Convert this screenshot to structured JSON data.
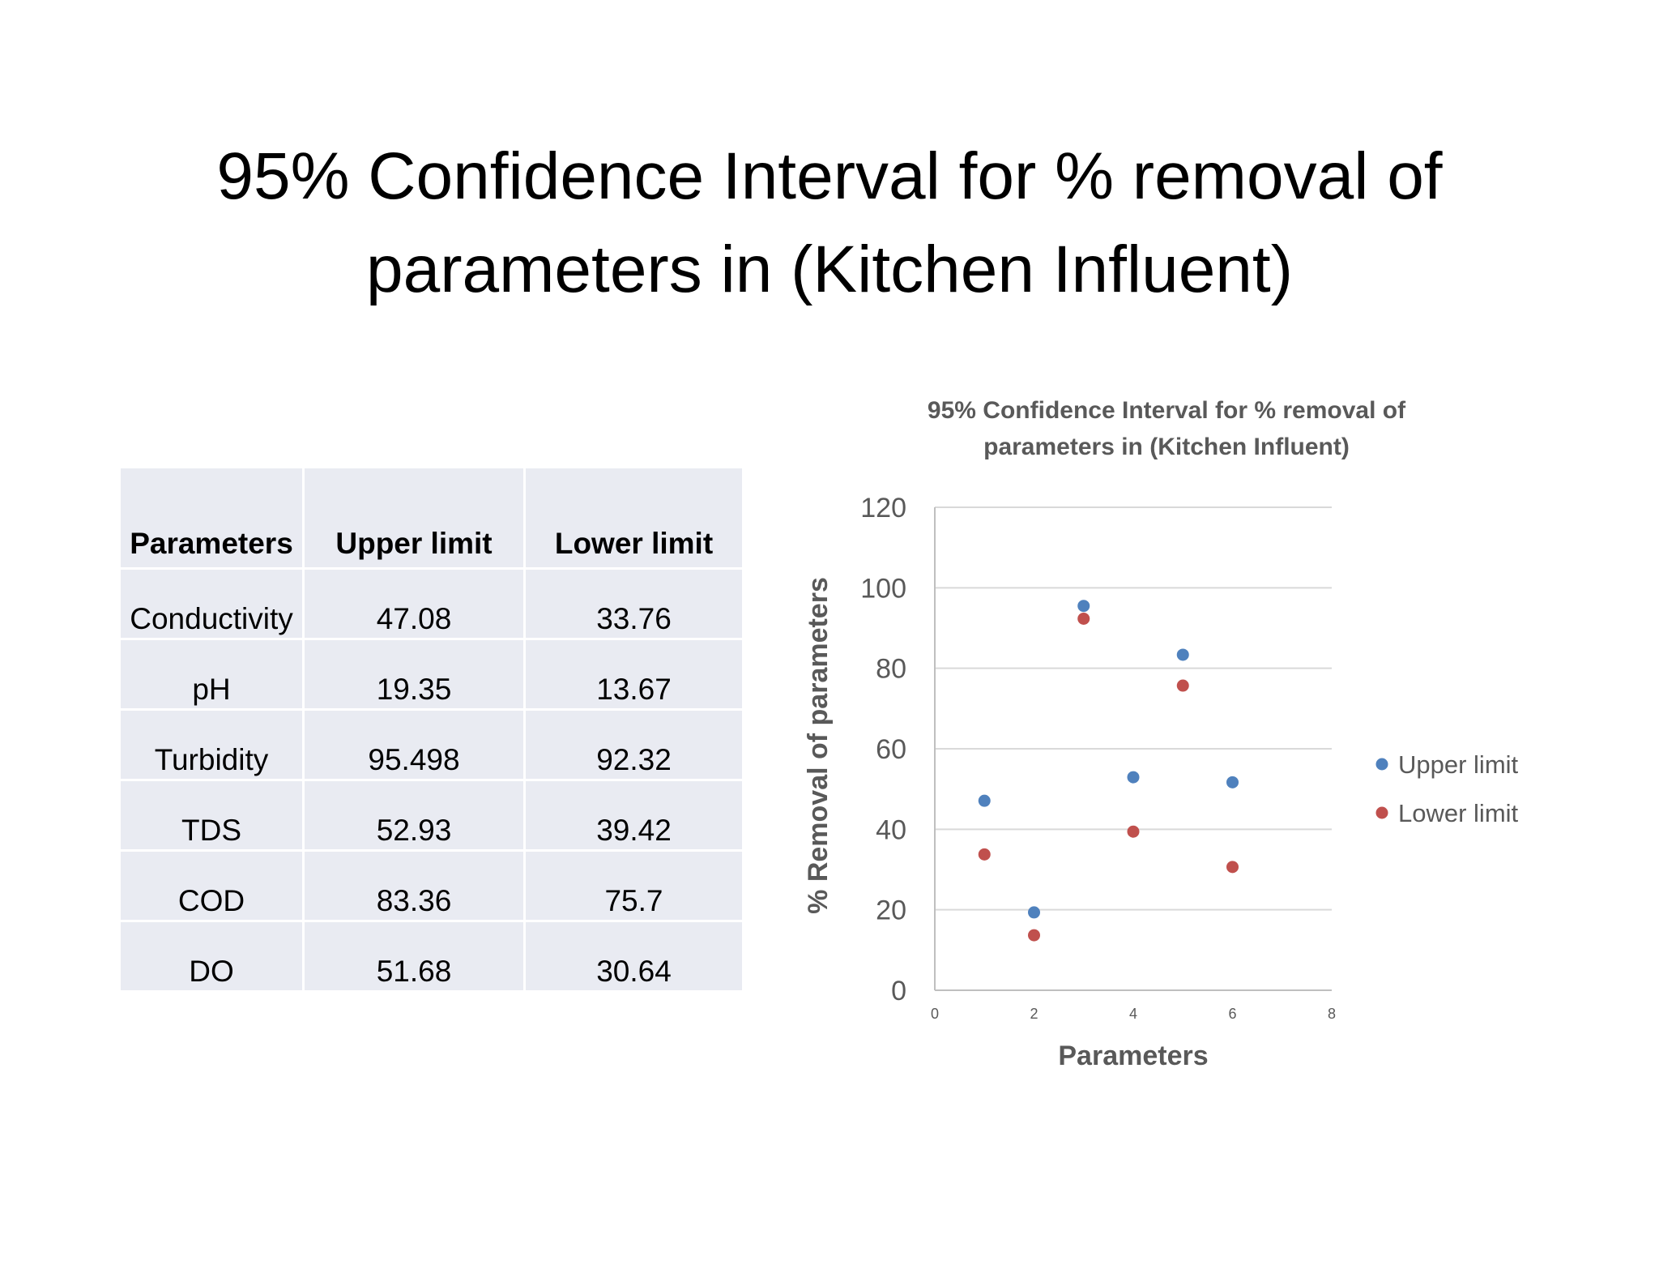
{
  "slide": {
    "title_line1": "95% Confidence Interval for % removal of",
    "title_line2": "parameters in (Kitchen Influent)"
  },
  "table": {
    "headers": [
      "Parameters",
      "Upper limit",
      "Lower limit"
    ],
    "rows": [
      [
        "Conductivity",
        "47.08",
        "33.76"
      ],
      [
        "pH",
        "19.35",
        "13.67"
      ],
      [
        "Turbidity",
        "95.498",
        "92.32"
      ],
      [
        "TDS",
        "52.93",
        "39.42"
      ],
      [
        "COD",
        "83.36",
        "75.7"
      ],
      [
        "DO",
        "51.68",
        "30.64"
      ]
    ]
  },
  "chart_data": {
    "type": "scatter",
    "title_line1": "95% Confidence Interval for % removal of",
    "title_line2": "parameters in (Kitchen Influent)",
    "xlabel": "Parameters",
    "ylabel": "% Removal of parameters",
    "xlim": [
      0,
      8
    ],
    "ylim": [
      0,
      120
    ],
    "x_ticks": [
      0,
      2,
      4,
      6,
      8
    ],
    "y_ticks": [
      0,
      20,
      40,
      60,
      80,
      100,
      120
    ],
    "grid": "horizontal",
    "legend_position": "right",
    "series": [
      {
        "name": "Upper limit",
        "color": "#4f81bd",
        "x": [
          1,
          2,
          3,
          4,
          5,
          6
        ],
        "y": [
          47.08,
          19.35,
          95.498,
          52.93,
          83.36,
          51.68
        ]
      },
      {
        "name": "Lower limit",
        "color": "#c0504d",
        "x": [
          1,
          2,
          3,
          4,
          5,
          6
        ],
        "y": [
          33.76,
          13.67,
          92.32,
          39.42,
          75.7,
          30.64
        ]
      }
    ]
  }
}
